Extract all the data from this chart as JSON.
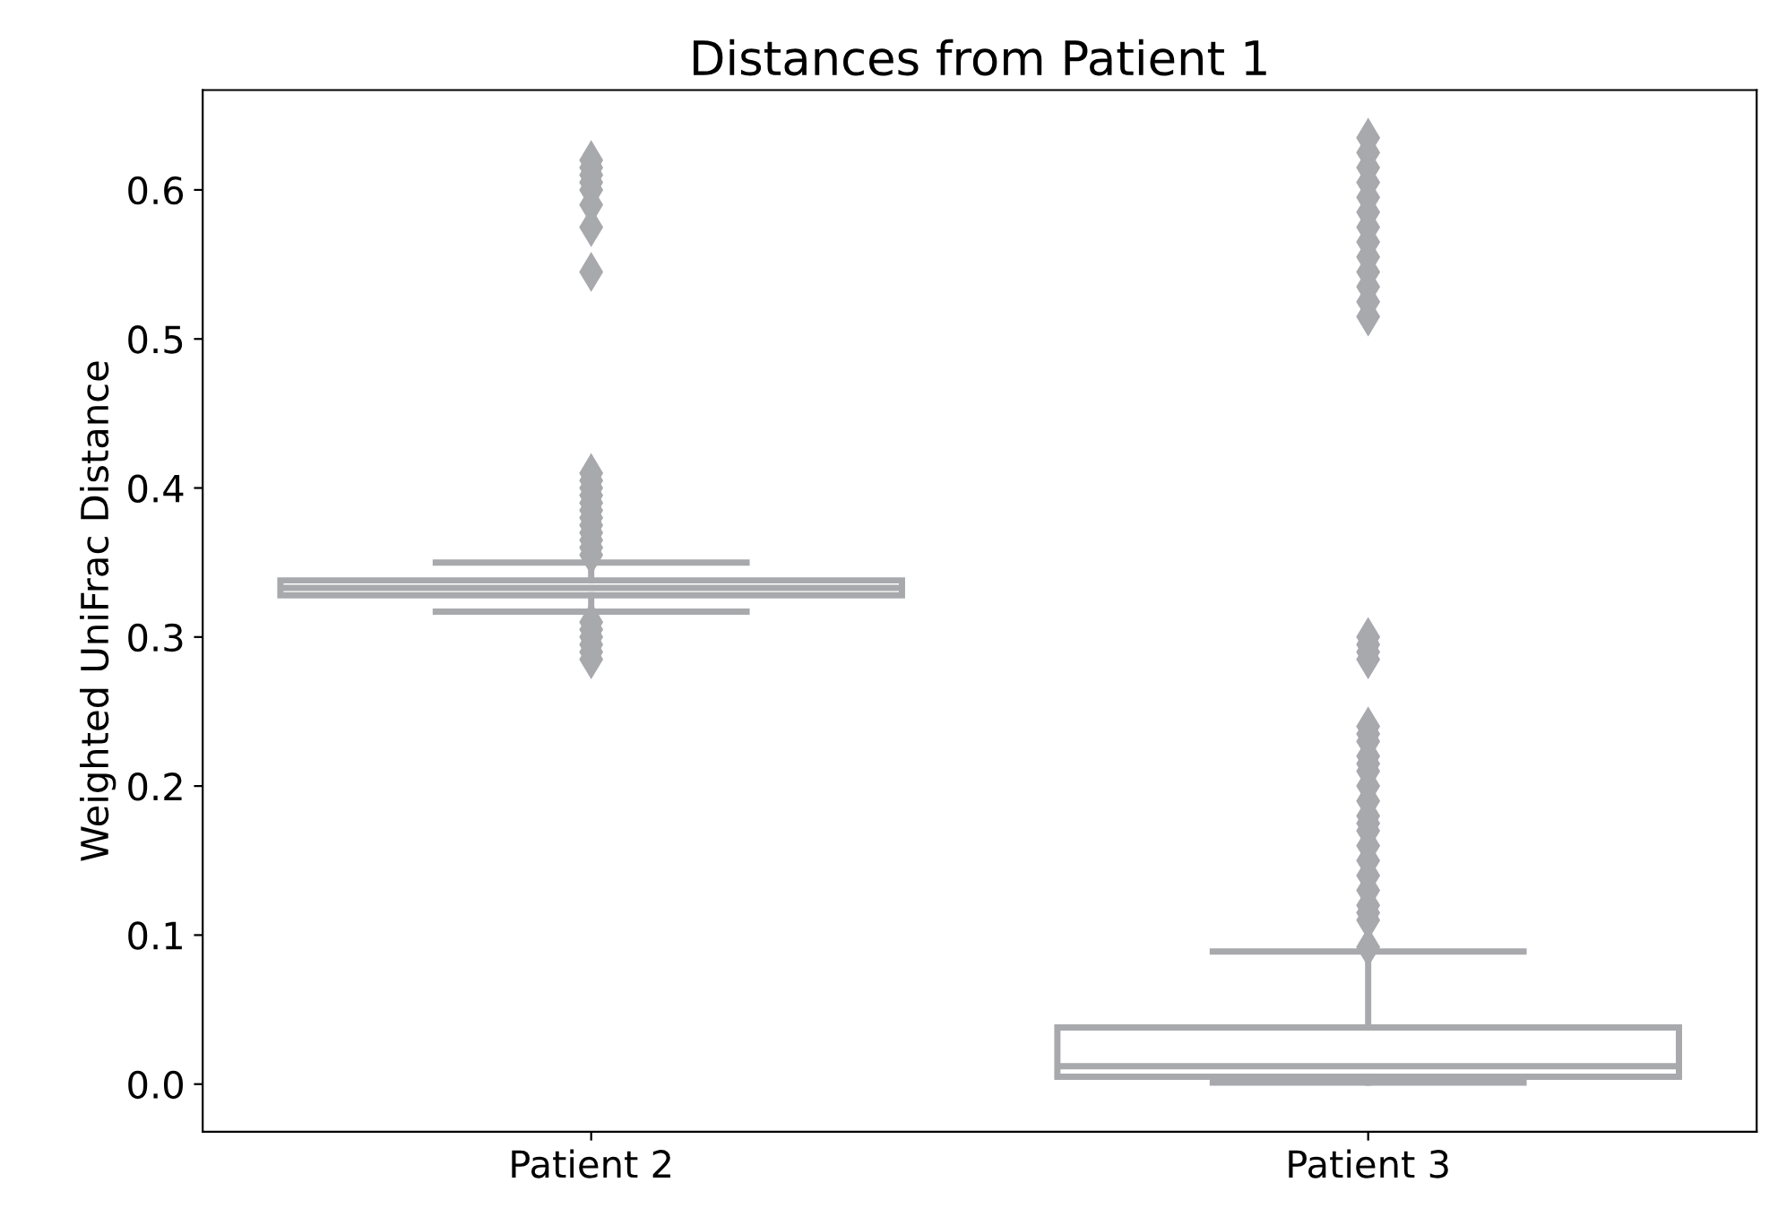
{
  "chart_data": {
    "type": "box",
    "title": "Distances from Patient 1",
    "ylabel": "Weighted UniFrac Distance",
    "categories": [
      "Patient 2",
      "Patient 3"
    ],
    "color": "#a8a9ad",
    "marker": "diamond",
    "boxes": [
      {
        "low": 0.317,
        "q1": 0.328,
        "median": 0.333,
        "q3": 0.338,
        "high": 0.35,
        "outliers": [
          0.285,
          0.29,
          0.295,
          0.3,
          0.305,
          0.31,
          0.355,
          0.36,
          0.365,
          0.37,
          0.375,
          0.38,
          0.385,
          0.39,
          0.395,
          0.4,
          0.405,
          0.41,
          0.545,
          0.575,
          0.59,
          0.6,
          0.605,
          0.61,
          0.615,
          0.62
        ]
      },
      {
        "low": 0.001,
        "q1": 0.005,
        "median": 0.012,
        "q3": 0.038,
        "high": 0.089,
        "outliers": [
          0.092,
          0.11,
          0.115,
          0.12,
          0.13,
          0.14,
          0.15,
          0.16,
          0.17,
          0.175,
          0.18,
          0.19,
          0.2,
          0.21,
          0.215,
          0.22,
          0.23,
          0.235,
          0.24,
          0.285,
          0.29,
          0.295,
          0.3,
          0.515,
          0.525,
          0.535,
          0.545,
          0.555,
          0.565,
          0.575,
          0.585,
          0.595,
          0.605,
          0.615,
          0.625,
          0.635
        ]
      }
    ],
    "ylim": [
      -0.032,
      0.667
    ],
    "yticks": [
      {
        "value": 0,
        "label": "0.0"
      },
      0.1,
      0.2,
      0.3,
      0.4,
      0.5,
      0.6
    ],
    "grid": false
  }
}
